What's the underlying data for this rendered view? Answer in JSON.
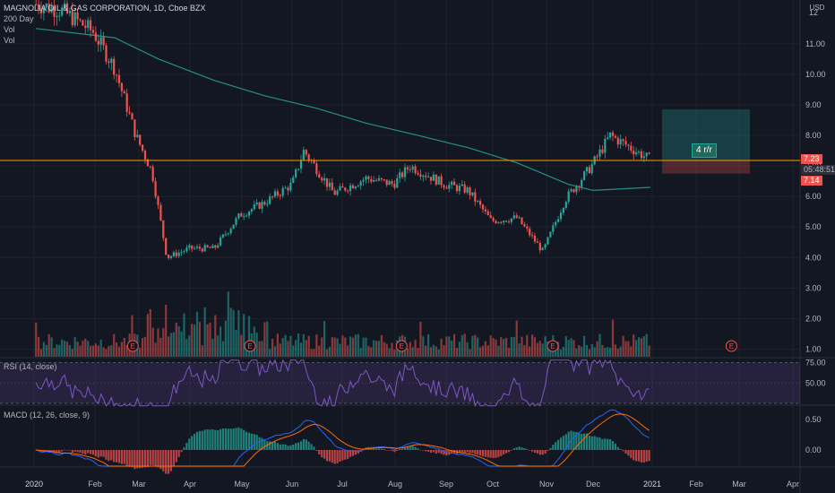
{
  "legend": {
    "title": "MAGNOLIA OIL & GAS CORPORATION, 1D, Cboe BZX",
    "ma": "200 Day",
    "vol1": "Vol",
    "vol2": "Vol"
  },
  "price_axis": {
    "unit": "USD",
    "ticks": [
      "11.00",
      "10.00",
      "9.00",
      "8.00",
      "7.00",
      "6.00",
      "5.00",
      "4.00",
      "3.00",
      "2.00",
      "1.00"
    ],
    "top_tick": "12"
  },
  "price_tags": {
    "top": "7.23",
    "mid": "05:48:51",
    "bottom": "7.14"
  },
  "position": {
    "label": "4 r/r",
    "entry": 7.18,
    "target": 8.85,
    "stop": 6.75
  },
  "rsi": {
    "label": "RSI (14, close)",
    "ticks": [
      "75.00",
      "50.00"
    ]
  },
  "macd": {
    "label": "MACD (12, 26, close, 9)",
    "ticks": [
      "0.50",
      "0.00"
    ]
  },
  "time_axis": [
    "2020",
    "Feb",
    "Mar",
    "Apr",
    "May",
    "Jun",
    "Jul",
    "Aug",
    "Sep",
    "Oct",
    "Nov",
    "Dec",
    "2021",
    "Feb",
    "Mar",
    "Apr"
  ],
  "earnings_marker": "E",
  "colors": {
    "up": "#26a69a",
    "down": "#ef5350",
    "ma": "#26a69a",
    "level": "#ff9800",
    "rsi": "#7e57c2"
  },
  "chart_data": {
    "type": "candlestick",
    "symbol": "MAGNOLIA OIL & GAS CORPORATION",
    "interval": "1D",
    "ylim": [
      0.75,
      12.2
    ],
    "horizontal_level": 7.18,
    "close_path": [
      {
        "x": "2020-01-02",
        "y": 12.3
      },
      {
        "x": "2020-01-15",
        "y": 12.1
      },
      {
        "x": "2020-01-31",
        "y": 11.4
      },
      {
        "x": "2020-02-14",
        "y": 10.2
      },
      {
        "x": "2020-02-28",
        "y": 8.0
      },
      {
        "x": "2020-03-09",
        "y": 6.8
      },
      {
        "x": "2020-03-18",
        "y": 4.0
      },
      {
        "x": "2020-04-01",
        "y": 4.3
      },
      {
        "x": "2020-04-15",
        "y": 4.3
      },
      {
        "x": "2020-04-30",
        "y": 5.4
      },
      {
        "x": "2020-05-15",
        "y": 5.8
      },
      {
        "x": "2020-06-01",
        "y": 6.4
      },
      {
        "x": "2020-06-08",
        "y": 7.5
      },
      {
        "x": "2020-06-26",
        "y": 6.1
      },
      {
        "x": "2020-07-15",
        "y": 6.6
      },
      {
        "x": "2020-07-31",
        "y": 6.4
      },
      {
        "x": "2020-08-10",
        "y": 7.0
      },
      {
        "x": "2020-08-31",
        "y": 6.4
      },
      {
        "x": "2020-09-15",
        "y": 6.2
      },
      {
        "x": "2020-09-30",
        "y": 5.2
      },
      {
        "x": "2020-10-15",
        "y": 5.3
      },
      {
        "x": "2020-10-30",
        "y": 4.2
      },
      {
        "x": "2020-11-13",
        "y": 5.9
      },
      {
        "x": "2020-11-30",
        "y": 7.0
      },
      {
        "x": "2020-12-10",
        "y": 8.0
      },
      {
        "x": "2020-12-31",
        "y": 7.2
      }
    ],
    "ma200_path": [
      {
        "x": "2020-01-02",
        "y": 11.5
      },
      {
        "x": "2020-02-14",
        "y": 11.2
      },
      {
        "x": "2020-03-13",
        "y": 10.5
      },
      {
        "x": "2020-04-15",
        "y": 9.8
      },
      {
        "x": "2020-05-15",
        "y": 9.3
      },
      {
        "x": "2020-06-15",
        "y": 8.9
      },
      {
        "x": "2020-07-15",
        "y": 8.4
      },
      {
        "x": "2020-08-15",
        "y": 8.0
      },
      {
        "x": "2020-09-15",
        "y": 7.6
      },
      {
        "x": "2020-10-15",
        "y": 7.1
      },
      {
        "x": "2020-11-15",
        "y": 6.4
      },
      {
        "x": "2020-12-01",
        "y": 6.2
      },
      {
        "x": "2020-12-31",
        "y": 6.3
      }
    ],
    "earnings_dates": [
      "2020-02-26",
      "2020-05-06",
      "2020-08-05",
      "2020-11-05",
      "2021-02-24"
    ]
  }
}
